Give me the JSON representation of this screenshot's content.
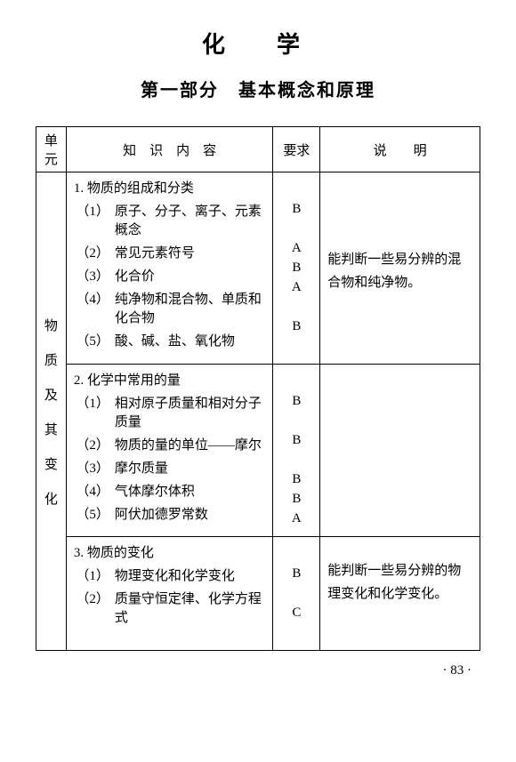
{
  "page": {
    "title": "化　学",
    "section": "第一部分　基本概念和原理",
    "page_number": "· 83 ·"
  },
  "table": {
    "headers": {
      "unit": "单元",
      "content": "知　识　内　容",
      "requirement": "要求",
      "note": "说　　明"
    },
    "unit_label": "物质及其变化",
    "sections": [
      {
        "head": "1. 物质的组成和分类",
        "items": [
          {
            "num": "（1）",
            "text": "原子、分子、离子、元素概念",
            "req": "B"
          },
          {
            "num": "（2）",
            "text": "常见元素符号",
            "req": "A"
          },
          {
            "num": "（3）",
            "text": "化合价",
            "req": "B"
          },
          {
            "num": "（4）",
            "text": "纯净物和混合物、单质和化合物",
            "req": "A"
          },
          {
            "num": "（5）",
            "text": "酸、碱、盐、氧化物",
            "req": "B"
          }
        ],
        "note": "能判断一些易分辨的混合物和纯净物。"
      },
      {
        "head": "2. 化学中常用的量",
        "items": [
          {
            "num": "（1）",
            "text": "相对原子质量和相对分子质量",
            "req": "B"
          },
          {
            "num": "（2）",
            "text": "物质的量的单位——摩尔",
            "req": "B"
          },
          {
            "num": "（3）",
            "text": "摩尔质量",
            "req": "B"
          },
          {
            "num": "（4）",
            "text": "气体摩尔体积",
            "req": "B"
          },
          {
            "num": "（5）",
            "text": "阿伏加德罗常数",
            "req": "A"
          }
        ],
        "note": ""
      },
      {
        "head": "3. 物质的变化",
        "items": [
          {
            "num": "（1）",
            "text": "物理变化和化学变化",
            "req": "B"
          },
          {
            "num": "（2）",
            "text": "质量守恒定律、化学方程式",
            "req": "C"
          }
        ],
        "note": "能判断一些易分辨的物理变化和化学变化。"
      }
    ]
  },
  "layout": {
    "req_spacers": {
      "s1": [
        " ",
        "B",
        " ",
        "A",
        "B",
        "A",
        " ",
        "B",
        " "
      ],
      "s2": [
        " ",
        "B",
        " ",
        "B",
        " ",
        "B",
        "B",
        "A"
      ],
      "s3": [
        " ",
        "B",
        " ",
        "C",
        " "
      ]
    }
  }
}
